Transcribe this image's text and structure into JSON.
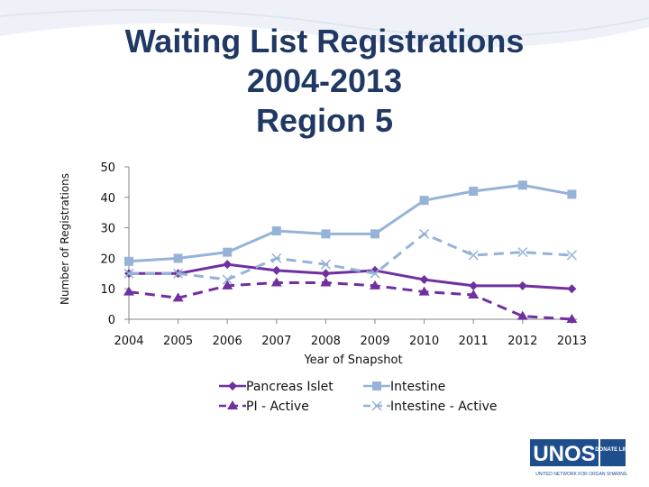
{
  "title_lines": [
    "Waiting List Registrations",
    "2004-2013",
    "Region 5"
  ],
  "logo": {
    "text": "UNOS",
    "badge": "DONATE LIFE",
    "tagline": "UNITED NETWORK FOR ORGAN SHARING"
  },
  "chart_data": {
    "type": "line",
    "title": "Waiting List Registrations 2004-2013 Region 5",
    "xlabel": "Year of Snapshot",
    "ylabel": "Number of Registrations",
    "x": [
      "2004",
      "2005",
      "2006",
      "2007",
      "2008",
      "2009",
      "2010",
      "2011",
      "2012",
      "2013"
    ],
    "yticks": [
      "0",
      "10",
      "20",
      "30",
      "40",
      "50"
    ],
    "ylim": [
      0,
      50
    ],
    "grid": false,
    "legend_position": "bottom",
    "series": [
      {
        "name": "Pancreas Islet",
        "values": [
          15,
          15,
          18,
          16,
          15,
          16,
          13,
          11,
          11,
          10
        ],
        "color": "#7030a0",
        "marker": "diamond",
        "dash": "solid"
      },
      {
        "name": "Intestine",
        "values": [
          19,
          20,
          22,
          29,
          28,
          28,
          39,
          42,
          44,
          41
        ],
        "color": "#95b3d7",
        "marker": "square",
        "dash": "solid"
      },
      {
        "name": "PI - Active",
        "values": [
          9,
          7,
          11,
          12,
          12,
          11,
          9,
          8,
          1,
          0
        ],
        "color": "#7030a0",
        "marker": "triangle",
        "dash": "dashed"
      },
      {
        "name": "Intestine - Active",
        "values": [
          15,
          15,
          13,
          20,
          18,
          15,
          28,
          21,
          22,
          21
        ],
        "color": "#95b3d7",
        "marker": "x",
        "dash": "dashed"
      }
    ]
  }
}
